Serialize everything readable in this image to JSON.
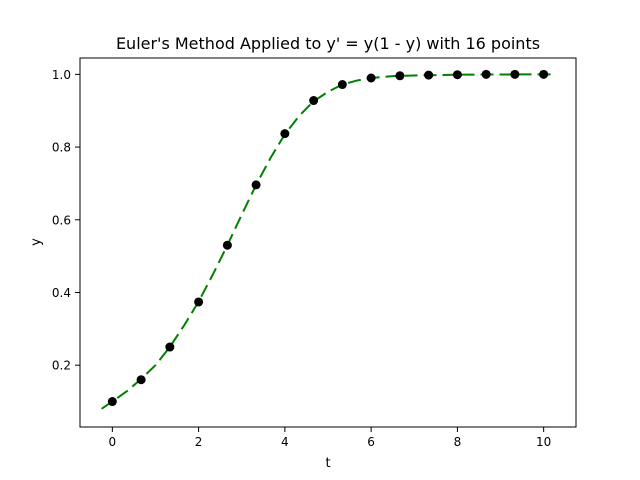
{
  "chart_data": {
    "type": "line",
    "title": "Euler's Method Applied to y' = y(1 - y) with 16 points",
    "xlabel": "t",
    "ylabel": "y",
    "xlim": [
      -0.75,
      10.75
    ],
    "ylim": [
      0.03,
      1.045
    ],
    "xticks": [
      0,
      2,
      4,
      6,
      8,
      10
    ],
    "yticks": [
      0.2,
      0.4,
      0.6,
      0.8,
      1.0
    ],
    "grid": false,
    "colors": {
      "line": "#008000",
      "points": "#000000"
    },
    "series": [
      {
        "style": "dashed-line",
        "x": [
          -0.25,
          0.0,
          0.333,
          0.667,
          1.0,
          1.333,
          1.667,
          2.0,
          2.333,
          2.667,
          3.0,
          3.333,
          3.667,
          4.0,
          4.333,
          4.667,
          5.0,
          5.333,
          5.667,
          6.0,
          6.5,
          7.0,
          7.5,
          8.0,
          8.5,
          9.0,
          9.5,
          10.0,
          10.25
        ],
        "y": [
          0.08,
          0.1,
          0.128,
          0.162,
          0.2,
          0.25,
          0.31,
          0.375,
          0.45,
          0.53,
          0.614,
          0.696,
          0.77,
          0.835,
          0.886,
          0.926,
          0.952,
          0.972,
          0.983,
          0.99,
          0.995,
          0.997,
          0.998,
          0.999,
          0.9995,
          0.9997,
          0.9998,
          0.9999,
          1.0
        ]
      },
      {
        "style": "points",
        "x": [
          0.0,
          0.667,
          1.333,
          2.0,
          2.667,
          3.333,
          4.0,
          4.667,
          5.333,
          6.0,
          6.667,
          7.333,
          8.0,
          8.667,
          9.333,
          10.0
        ],
        "y": [
          0.1,
          0.16,
          0.25,
          0.374,
          0.53,
          0.696,
          0.837,
          0.928,
          0.972,
          0.99,
          0.996,
          0.998,
          0.999,
          1.0,
          1.0,
          1.0
        ]
      }
    ]
  }
}
